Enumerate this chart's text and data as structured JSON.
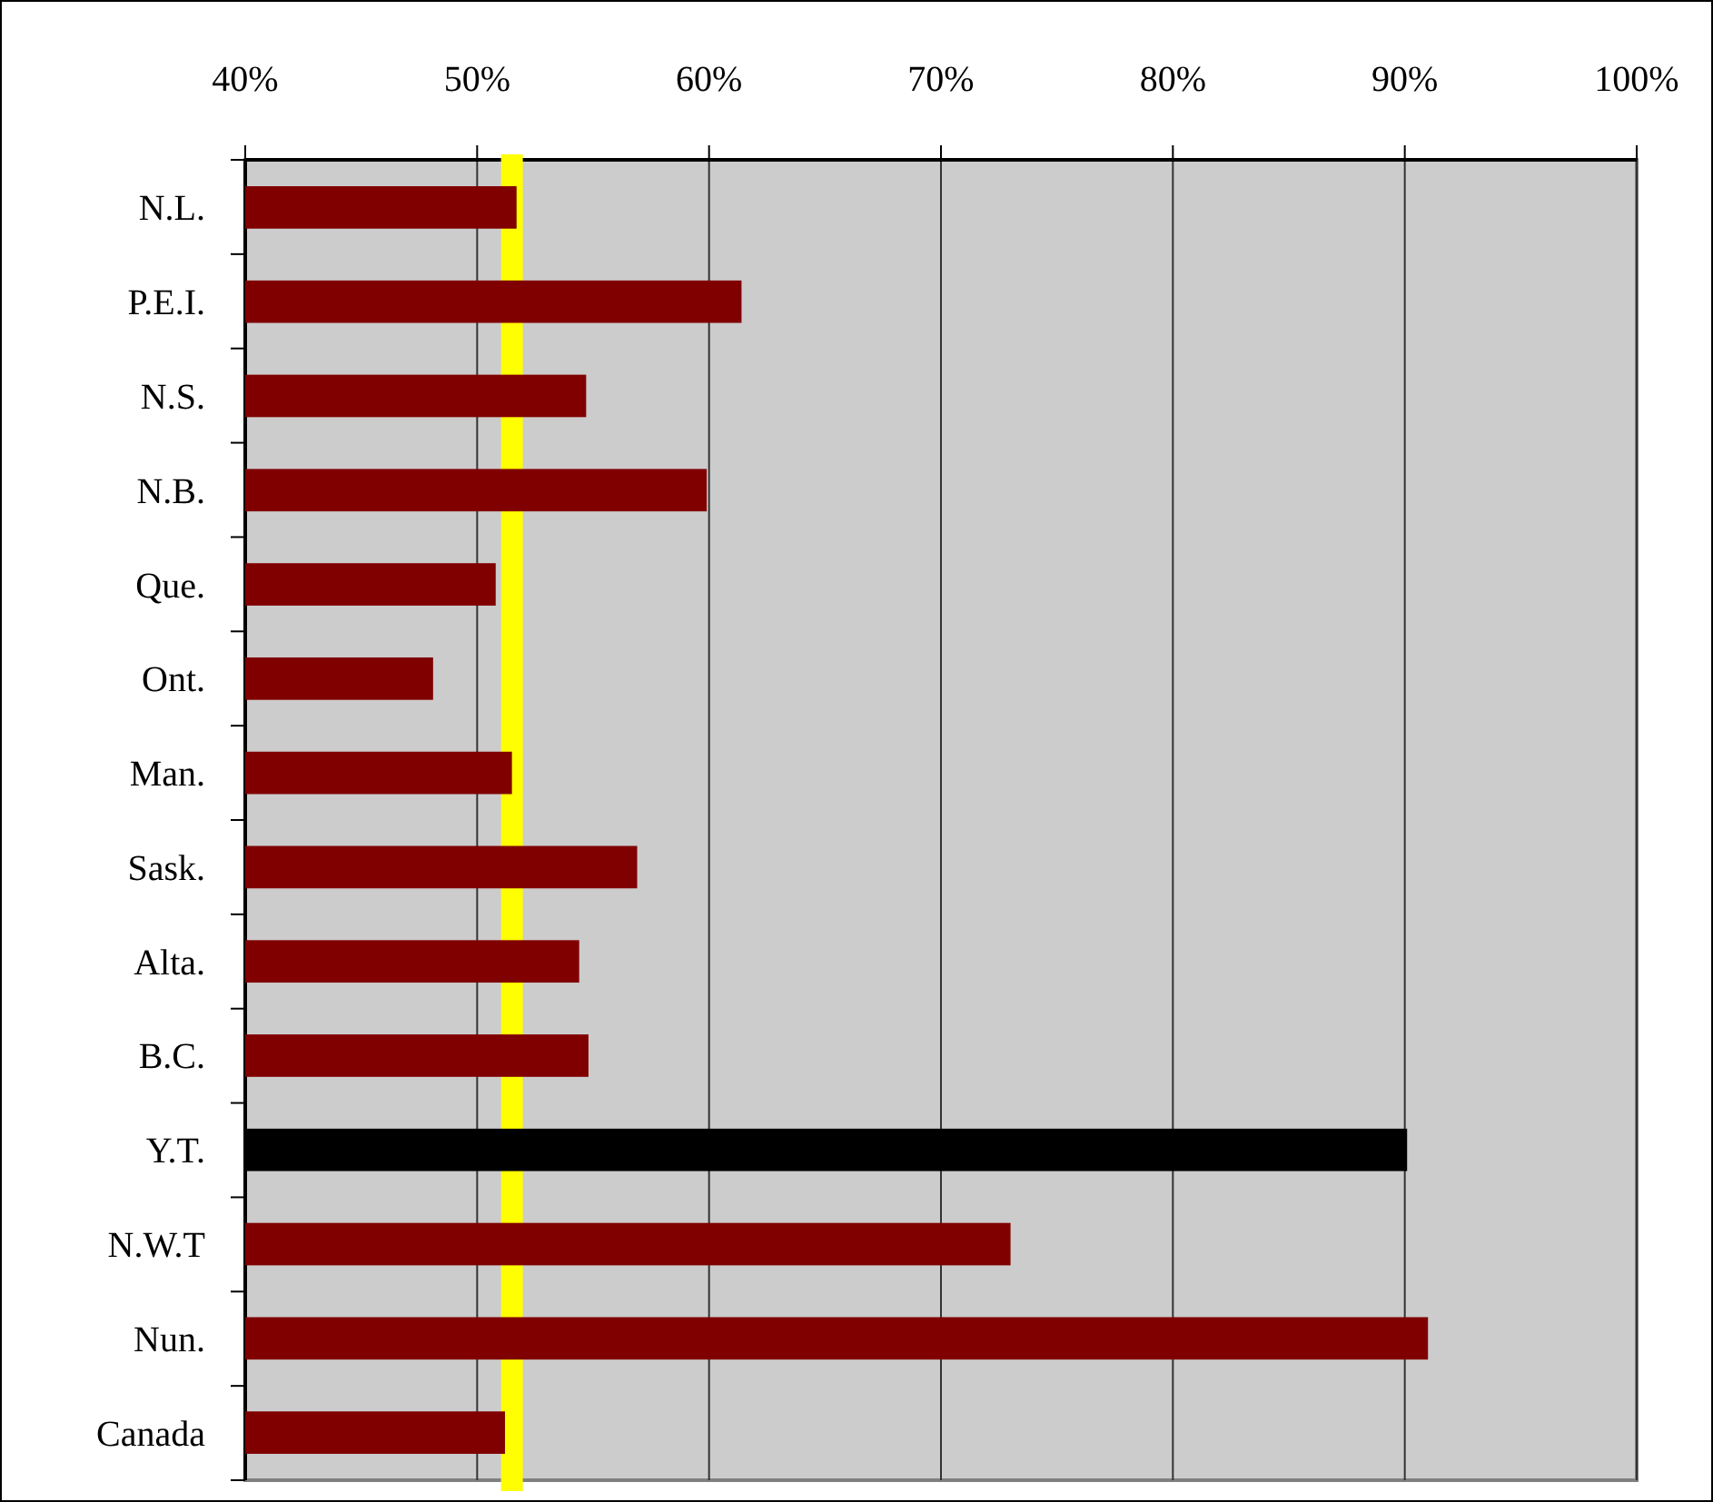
{
  "chart_data": {
    "type": "bar",
    "orientation": "horizontal",
    "categories": [
      "N.L.",
      "P.E.I.",
      "N.S.",
      "N.B.",
      "Que.",
      "Ont.",
      "Man.",
      "Sask.",
      "Alta.",
      "B.C.",
      "Y.T.",
      "N.W.T",
      "Nun.",
      "Canada"
    ],
    "values": [
      51.7,
      61.4,
      54.7,
      59.9,
      50.8,
      48.1,
      51.5,
      56.9,
      54.4,
      54.8,
      90.1,
      73.0,
      91.0,
      51.2
    ],
    "colors": [
      "#800000",
      "#800000",
      "#800000",
      "#800000",
      "#800000",
      "#800000",
      "#800000",
      "#800000",
      "#800000",
      "#800000",
      "#000000",
      "#800000",
      "#800000",
      "#800000"
    ],
    "xlim": [
      40,
      100
    ],
    "xticks": [
      {
        "value": 40,
        "label": "40%"
      },
      {
        "value": 50,
        "label": "50%"
      },
      {
        "value": 60,
        "label": "60%"
      },
      {
        "value": 70,
        "label": "70%"
      },
      {
        "value": 80,
        "label": "80%"
      },
      {
        "value": 90,
        "label": "90%"
      },
      {
        "value": 100,
        "label": "100%"
      }
    ],
    "grid": "x",
    "ref_lines": [
      {
        "axis": "x",
        "value": 51.5,
        "color": "#ffff00"
      }
    ]
  }
}
